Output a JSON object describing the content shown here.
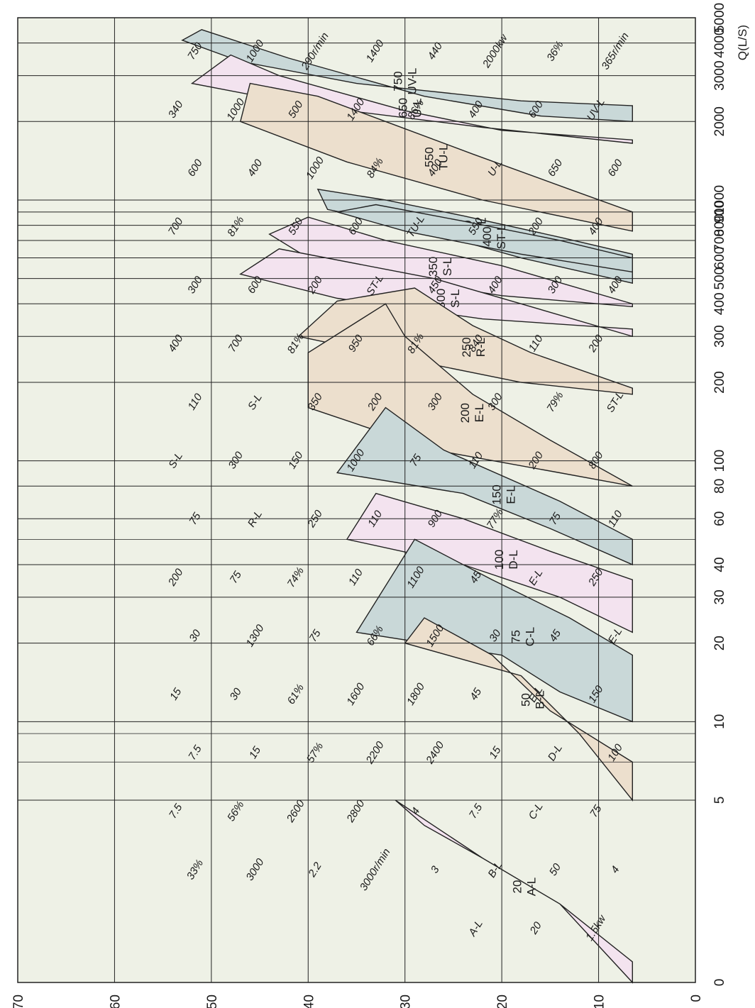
{
  "chart_data": {
    "type": "area",
    "title": "",
    "xlabel": "Q(L/S)",
    "ylabel": "",
    "xscale": "log",
    "xlim": [
      1,
      5000
    ],
    "ylim": [
      0,
      70
    ],
    "x_ticks": [
      {
        "v": 5000,
        "t": "5000"
      },
      {
        "v": 4000,
        "t": "4000"
      },
      {
        "v": 3000,
        "t": "3000"
      },
      {
        "v": 2000,
        "t": "2000"
      },
      {
        "v": 1000,
        "t": "1000"
      },
      {
        "v": 900,
        "t": "900"
      },
      {
        "v": 800,
        "t": "800"
      },
      {
        "v": 700,
        "t": "700"
      },
      {
        "v": 600,
        "t": "600"
      },
      {
        "v": 500,
        "t": "500"
      },
      {
        "v": 400,
        "t": "400"
      },
      {
        "v": 300,
        "t": "300"
      },
      {
        "v": 200,
        "t": "200"
      },
      {
        "v": 100,
        "t": "100"
      },
      {
        "v": 80,
        "t": "80"
      },
      {
        "v": 60,
        "t": "60"
      },
      {
        "v": 40,
        "t": "40"
      },
      {
        "v": 30,
        "t": "30"
      },
      {
        "v": 20,
        "t": "20"
      },
      {
        "v": 10,
        "t": "10"
      },
      {
        "v": 5,
        "t": "5"
      },
      {
        "v": 1,
        "t": "0"
      }
    ],
    "y_ticks": [
      0,
      10,
      20,
      30,
      40,
      50,
      60,
      70
    ],
    "grid": true,
    "colors": {
      "background": "#eef1e6",
      "grey_blue": "#c9d8d8",
      "pink": "#f3e3ef",
      "tan": "#ecdfcd",
      "grid": "#222222"
    },
    "regions": [
      {
        "code": "UV-L",
        "size": "750",
        "color": "grey_blue",
        "points": [
          [
            2300,
            6.5
          ],
          [
            2400,
            18
          ],
          [
            2800,
            35
          ],
          [
            3400,
            47
          ],
          [
            4100,
            53
          ],
          [
            4500,
            51
          ],
          [
            3500,
            42
          ],
          [
            2500,
            28
          ],
          [
            2100,
            16
          ],
          [
            2000,
            6.5
          ]
        ]
      },
      {
        "code": "U-L",
        "size": "650",
        "color": "pink",
        "points": [
          [
            1650,
            6.5
          ],
          [
            1900,
            22
          ],
          [
            2300,
            40
          ],
          [
            2800,
            52
          ],
          [
            3600,
            48
          ],
          [
            3000,
            43
          ],
          [
            2200,
            30
          ],
          [
            1850,
            20
          ],
          [
            1700,
            6.5
          ]
        ]
      },
      {
        "code": "TU-L",
        "size": "550",
        "color": "tan",
        "points": [
          [
            760,
            6.5
          ],
          [
            1000,
            22
          ],
          [
            1400,
            36
          ],
          [
            2000,
            47
          ],
          [
            2800,
            46
          ],
          [
            2500,
            39
          ],
          [
            2000,
            32
          ],
          [
            1500,
            23
          ],
          [
            1100,
            13
          ],
          [
            900,
            6.5
          ]
        ]
      },
      {
        "code": "ST-L",
        "size": "450",
        "color": "grey_blue",
        "points": [
          [
            480,
            6.5
          ],
          [
            600,
            18
          ],
          [
            800,
            30
          ],
          [
            920,
            38
          ],
          [
            1100,
            39
          ],
          [
            1000,
            32
          ],
          [
            870,
            24
          ],
          [
            720,
            14
          ],
          [
            620,
            6.5
          ]
        ]
      },
      {
        "code": "ST-L",
        "size": "400",
        "color": "grey_blue",
        "points": [
          [
            530,
            6.5
          ],
          [
            620,
            18
          ],
          [
            760,
            30
          ],
          [
            900,
            37
          ],
          [
            960,
            33
          ],
          [
            830,
            24
          ],
          [
            700,
            14
          ],
          [
            600,
            6.5
          ]
        ]
      },
      {
        "code": "S-L",
        "size": "350",
        "color": "pink",
        "points": [
          [
            400,
            6.5
          ],
          [
            560,
            20
          ],
          [
            700,
            32
          ],
          [
            860,
            40
          ],
          [
            740,
            44
          ],
          [
            600,
            40
          ],
          [
            500,
            31
          ],
          [
            430,
            20
          ],
          [
            390,
            6.5
          ]
        ]
      },
      {
        "code": "S-L",
        "size": "300",
        "color": "pink",
        "points": [
          [
            300,
            6.5
          ],
          [
            400,
            18
          ],
          [
            500,
            27
          ],
          [
            650,
            43
          ],
          [
            520,
            47
          ],
          [
            420,
            37
          ],
          [
            350,
            22
          ],
          [
            320,
            6.5
          ]
        ]
      },
      {
        "code": "R-L",
        "size": "250",
        "color": "tan",
        "points": [
          [
            190,
            6.5
          ],
          [
            260,
            17
          ],
          [
            330,
            23
          ],
          [
            460,
            29
          ],
          [
            410,
            37
          ],
          [
            300,
            41
          ],
          [
            250,
            31
          ],
          [
            200,
            18
          ],
          [
            180,
            6.5
          ]
        ]
      },
      {
        "code": "E-L",
        "size": "200",
        "color": "tan",
        "points": [
          [
            80,
            6.5
          ],
          [
            120,
            15
          ],
          [
            180,
            23
          ],
          [
            300,
            30
          ],
          [
            400,
            32
          ],
          [
            260,
            40
          ],
          [
            160,
            40
          ],
          [
            110,
            27
          ],
          [
            90,
            14
          ],
          [
            80,
            6.5
          ]
        ]
      },
      {
        "code": "E-L",
        "size": "150",
        "color": "grey_blue",
        "points": [
          [
            40,
            6.5
          ],
          [
            55,
            15
          ],
          [
            75,
            24
          ],
          [
            90,
            37
          ],
          [
            160,
            32
          ],
          [
            110,
            26
          ],
          [
            70,
            14
          ],
          [
            50,
            6.5
          ]
        ]
      },
      {
        "code": "D-L",
        "size": "100",
        "color": "pink",
        "points": [
          [
            22,
            6.5
          ],
          [
            30,
            14
          ],
          [
            40,
            24
          ],
          [
            50,
            36
          ],
          [
            75,
            33
          ],
          [
            60,
            24
          ],
          [
            45,
            15
          ],
          [
            35,
            6.5
          ]
        ]
      },
      {
        "code": "C-L",
        "size": "75",
        "color": "grey_blue",
        "points": [
          [
            10,
            6.5
          ],
          [
            13,
            14
          ],
          [
            18,
            20
          ],
          [
            22,
            35
          ],
          [
            50,
            29
          ],
          [
            35,
            21
          ],
          [
            25,
            13
          ],
          [
            18,
            6.5
          ]
        ]
      },
      {
        "code": "B-L",
        "size": "50",
        "color": "tan",
        "points": [
          [
            5,
            6.5
          ],
          [
            9,
            12
          ],
          [
            15,
            18
          ],
          [
            20,
            30
          ],
          [
            25,
            28
          ],
          [
            18,
            21
          ],
          [
            11,
            15
          ],
          [
            7,
            6.5
          ]
        ]
      },
      {
        "code": "A-L",
        "size": "20",
        "color": "pink",
        "points": [
          [
            1,
            6.5
          ],
          [
            2,
            14
          ],
          [
            3,
            22
          ],
          [
            5,
            31
          ],
          [
            4,
            28
          ],
          [
            3,
            22
          ],
          [
            2,
            14
          ],
          [
            1.2,
            6.5
          ]
        ]
      }
    ],
    "annotations": [
      "365r/min",
      "36%",
      "2000kw",
      "440",
      "1400",
      "290r/min",
      "1000",
      "750",
      "UV-L",
      "600",
      "400",
      "86%",
      "1400",
      "500",
      "1000",
      "340",
      "600",
      "650",
      "U-L",
      "400",
      "84%",
      "1000",
      "400",
      "600",
      "400",
      "200",
      "550",
      "TU-L",
      "600",
      "550",
      "81%",
      "700",
      "400",
      "300",
      "400",
      "450",
      "ST-L",
      "200",
      "600",
      "300",
      "200",
      "110",
      "840",
      "81%",
      "950",
      "81%",
      "700",
      "400",
      "ST-L",
      "79%",
      "300",
      "300",
      "200",
      "350",
      "S-L",
      "110",
      "800",
      "200",
      "110",
      "75",
      "1000",
      "150",
      "300",
      "S-L",
      "110",
      "75",
      "77%",
      "900",
      "110",
      "250",
      "R-L",
      "75",
      "250",
      "E-L",
      "45",
      "1100",
      "110",
      "74%",
      "75",
      "200",
      "E-L",
      "45",
      "30",
      "1500",
      "66%",
      "75",
      "1300",
      "30",
      "150",
      "E-L",
      "45",
      "1800",
      "1600",
      "61%",
      "30",
      "15",
      "100",
      "D-L",
      "15",
      "2400",
      "2200",
      "57%",
      "15",
      "7.5",
      "75",
      "C-L",
      "7.5",
      "4",
      "2800",
      "2600",
      "56%",
      "7.5",
      "4",
      "50",
      "B-L",
      "3",
      "3000r/min",
      "2.2",
      "3000",
      "33%",
      "1.5kw",
      "20",
      "A-L"
    ]
  }
}
